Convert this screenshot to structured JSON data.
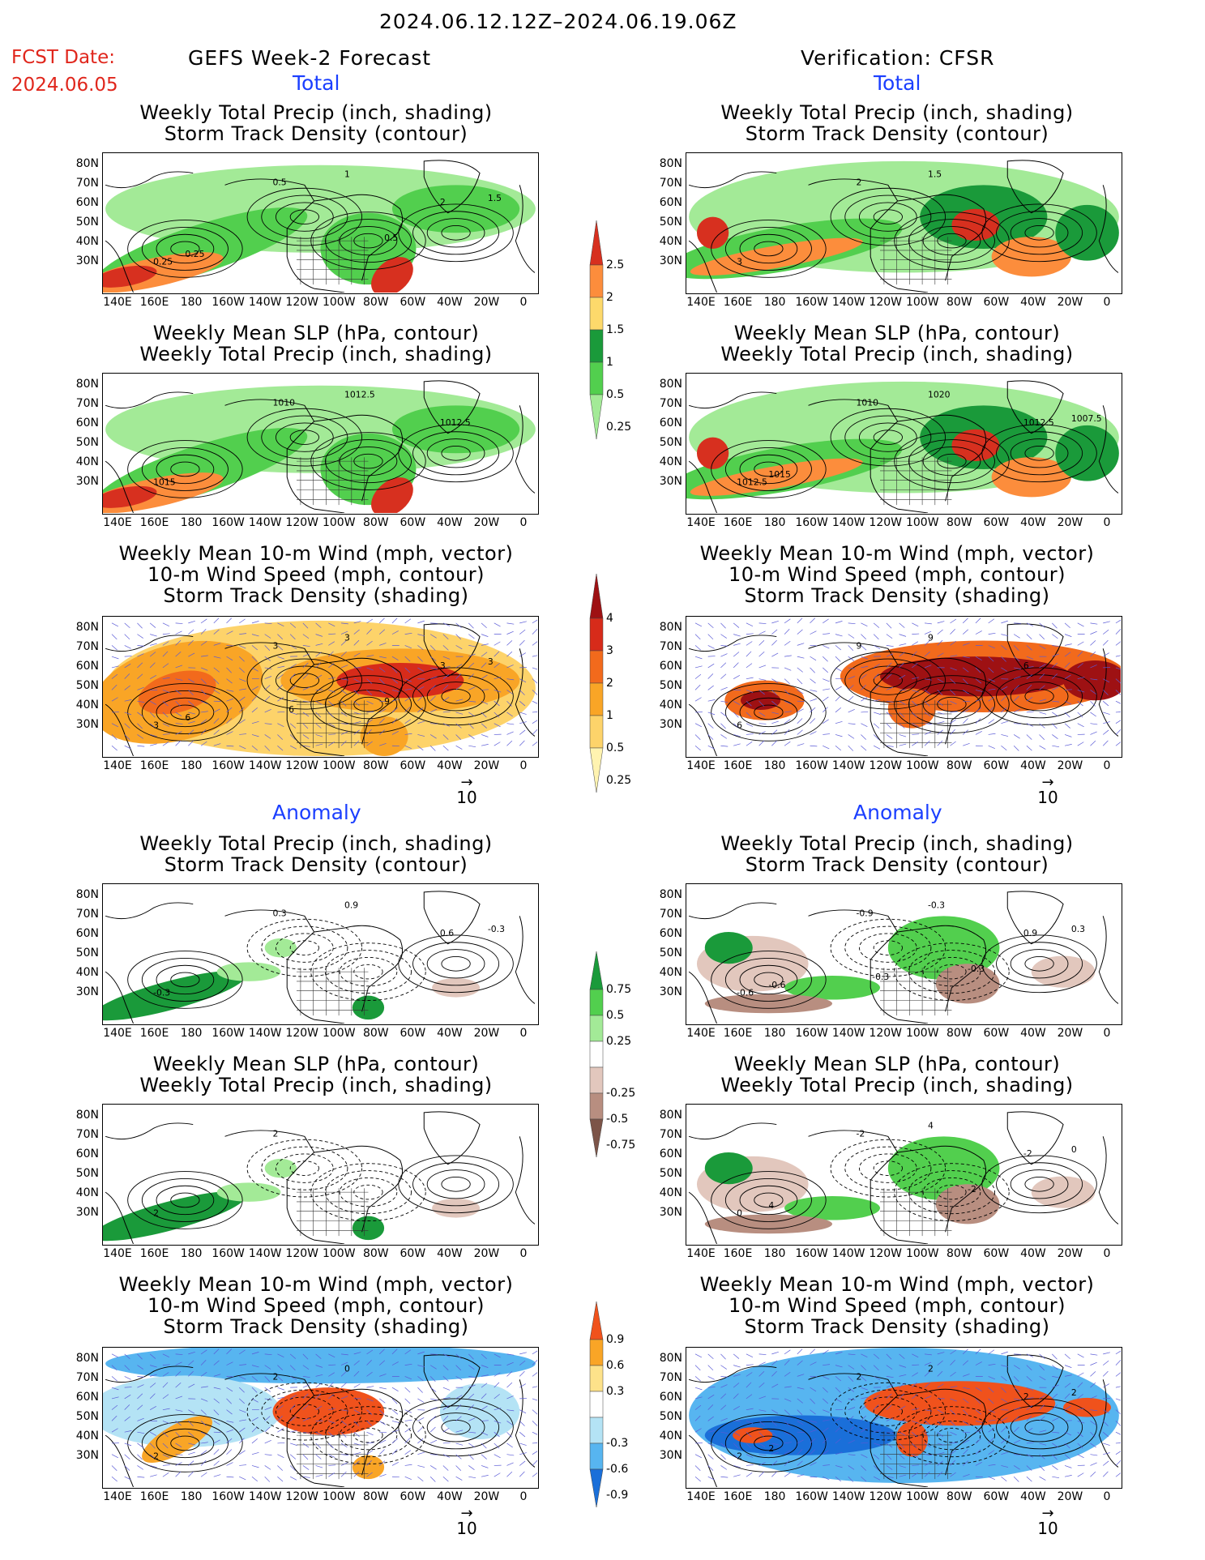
{
  "header": {
    "date_range": "2024.06.12.12Z–2024.06.19.06Z",
    "fcst_date_label": "FCST Date:",
    "fcst_date_value": "2024.06.05",
    "left_title": "GEFS Week-2 Forecast",
    "right_title": "Verification: CFSR"
  },
  "sections": {
    "total": "Total",
    "anomaly": "Anomaly"
  },
  "panel_titles": {
    "precip_storm": [
      "Weekly Total Precip (inch, shading)",
      "Storm Track Density (contour)"
    ],
    "slp_precip": [
      "Weekly Mean SLP (hPa, contour)",
      "Weekly Total Precip (inch, shading)"
    ],
    "wind_storm": [
      "Weekly Mean 10-m Wind (mph, vector)",
      "10-m Wind Speed (mph, contour)",
      "Storm Track Density (shading)"
    ]
  },
  "axes": {
    "lat_labels": [
      "80N",
      "70N",
      "60N",
      "50N",
      "40N",
      "30N"
    ],
    "lon_labels": [
      "140E",
      "160E",
      "180",
      "160W",
      "140W",
      "120W",
      "100W",
      "80W",
      "60W",
      "40W",
      "20W",
      "0"
    ]
  },
  "vector_ref": "10",
  "colorbars": {
    "precip_total": {
      "ticks": [
        "2.5",
        "2",
        "1.5",
        "1",
        "0.5",
        "0.25"
      ],
      "colors": [
        "#d7301f",
        "#fc8d3c",
        "#fdd96b",
        "#1a9a3a",
        "#52cf4e",
        "#a3ea97"
      ]
    },
    "storm_total": {
      "ticks": [
        "4",
        "3",
        "2",
        "1",
        "0.5",
        "0.25"
      ],
      "colors": [
        "#9e1113",
        "#d72b1a",
        "#f26a1c",
        "#f9a526",
        "#fdd36a",
        "#fff3b0"
      ]
    },
    "precip_anom": {
      "ticks": [
        "0.75",
        "0.5",
        "0.25",
        "-0.25",
        "-0.5",
        "-0.75"
      ],
      "colors": [
        "#1a9a3a",
        "#52cf4e",
        "#a3ea97",
        "#ffffff",
        "#e2c7bd",
        "#b88e80",
        "#7c5448"
      ]
    },
    "storm_anom": {
      "ticks": [
        "0.9",
        "0.6",
        "0.3",
        "-0.3",
        "-0.6",
        "-0.9"
      ],
      "colors": [
        "#f0521c",
        "#f9a526",
        "#fde28a",
        "#ffffff",
        "#b4e3f5",
        "#57b5f0",
        "#1a6fd9"
      ]
    }
  },
  "map_labels": {
    "l1": [
      "0.25",
      "0.5",
      "1",
      "2",
      "1.5",
      "0.25",
      "0.5"
    ],
    "r1": [
      "3",
      "2",
      "1.5"
    ],
    "l2": [
      "1015",
      "1010",
      "1012.5",
      "1012.5"
    ],
    "r2": [
      "1012.5",
      "1010",
      "1020",
      "1012.5",
      "1007.5",
      "1015"
    ],
    "l3": [
      "3",
      "3",
      "3",
      "3",
      "3",
      "6",
      "9",
      "6"
    ],
    "r3": [
      "6",
      "9",
      "9",
      "6"
    ],
    "l4": [
      "-0.3",
      "0.3",
      "0.9",
      "0.6",
      "-0.3"
    ],
    "r4": [
      "-0.6",
      "-0.9",
      "-0.3",
      "0.9",
      "0.3",
      "-0.6",
      "-0.3",
      "-0.3"
    ],
    "l5": [
      "2",
      "2"
    ],
    "r5": [
      "0",
      "-2",
      "4",
      "-2",
      "0",
      "4",
      "-2"
    ],
    "l6": [
      "2",
      "2",
      "0"
    ],
    "r6": [
      "2",
      "2",
      "2",
      "2",
      "2",
      "2"
    ]
  }
}
